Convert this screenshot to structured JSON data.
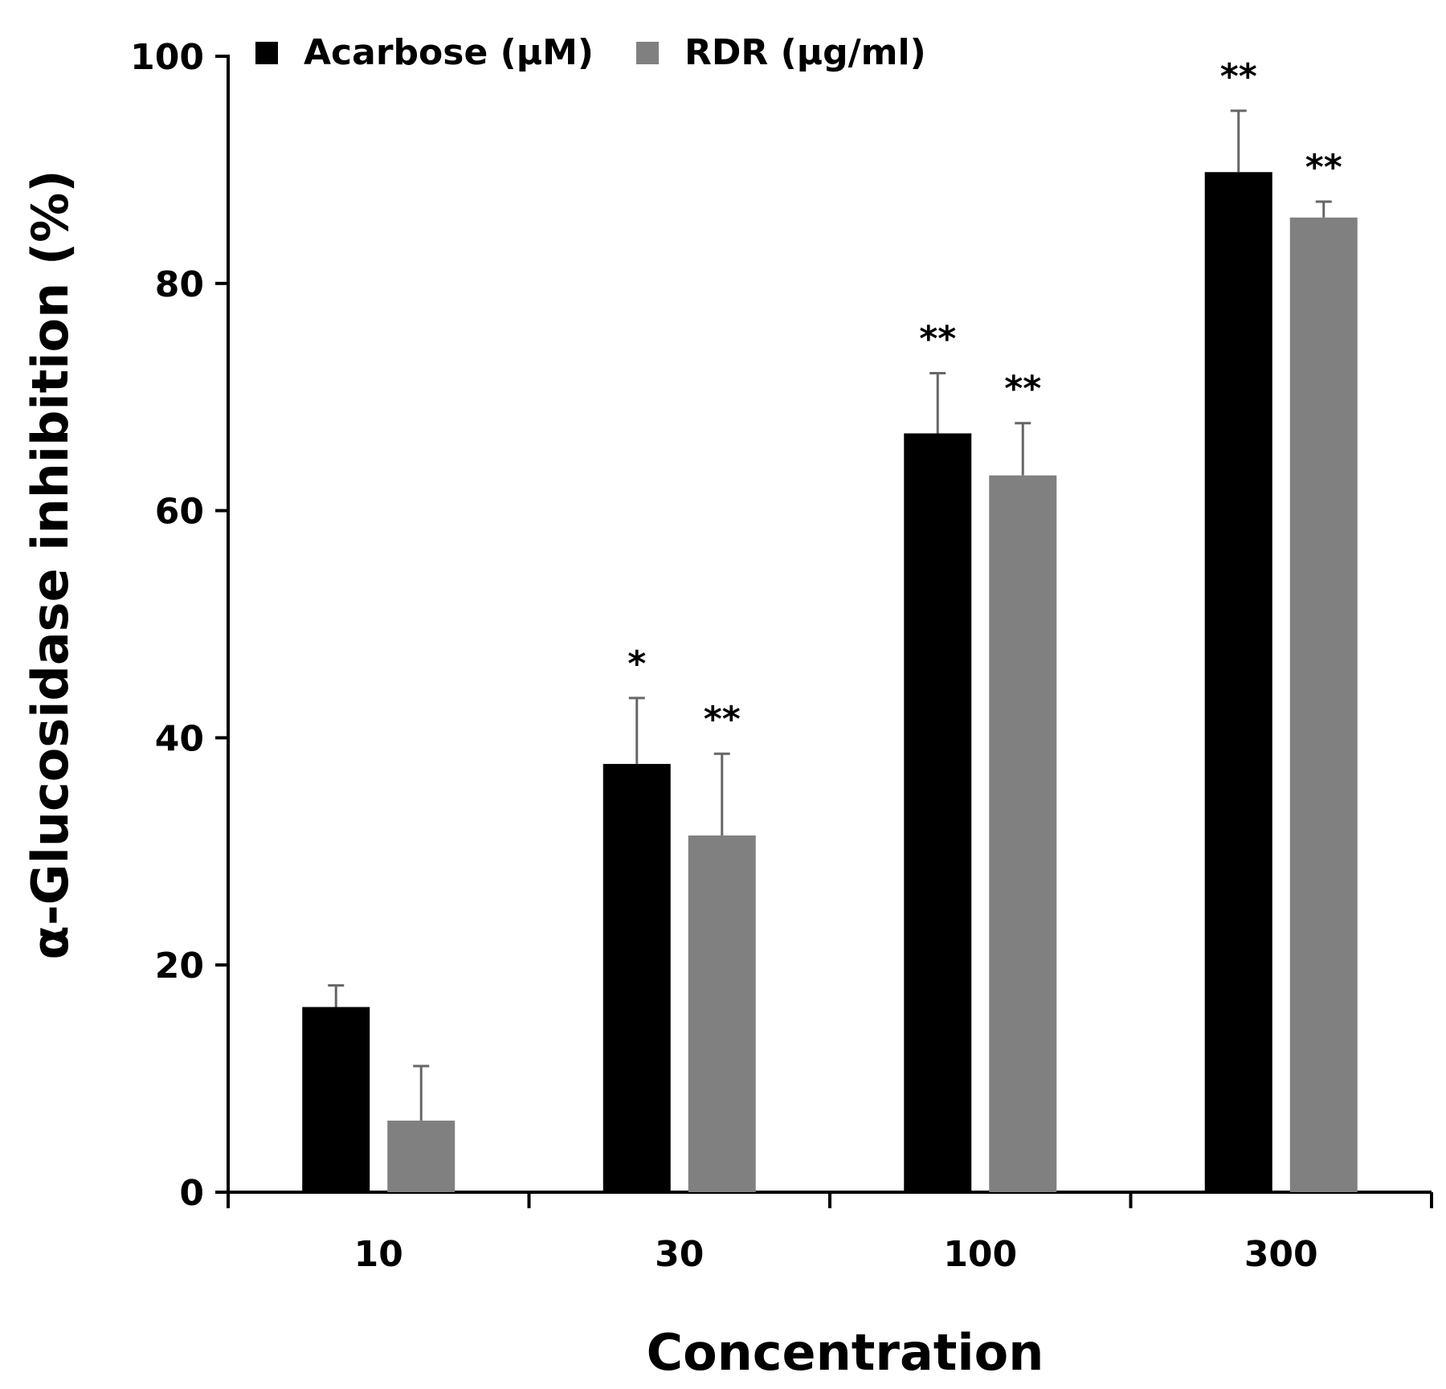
{
  "chart_data": {
    "type": "bar",
    "title": "",
    "xlabel": "Concentration",
    "ylabel": "α-Glucosidase inhibition (%)",
    "ylim": [
      0,
      100
    ],
    "yticks": [
      "0",
      "20",
      "40",
      "60",
      "80",
      "100"
    ],
    "categories": [
      "10",
      "30",
      "100",
      "300"
    ],
    "series": [
      {
        "name": "Acarbose (μM)",
        "color": "#000000",
        "values": [
          16.3,
          37.7,
          66.8,
          89.8
        ],
        "errors": [
          1.9,
          5.8,
          5.3,
          5.4
        ],
        "significance": [
          "",
          "*",
          "**",
          "**"
        ]
      },
      {
        "name": "RDR (μg/ml)",
        "color": "#808080",
        "values": [
          6.3,
          31.4,
          63.1,
          85.8
        ],
        "errors": [
          4.8,
          7.2,
          4.6,
          1.4
        ],
        "significance": [
          "",
          "**",
          "**",
          "**"
        ]
      }
    ],
    "legend_position": "top-left",
    "grid": false
  }
}
